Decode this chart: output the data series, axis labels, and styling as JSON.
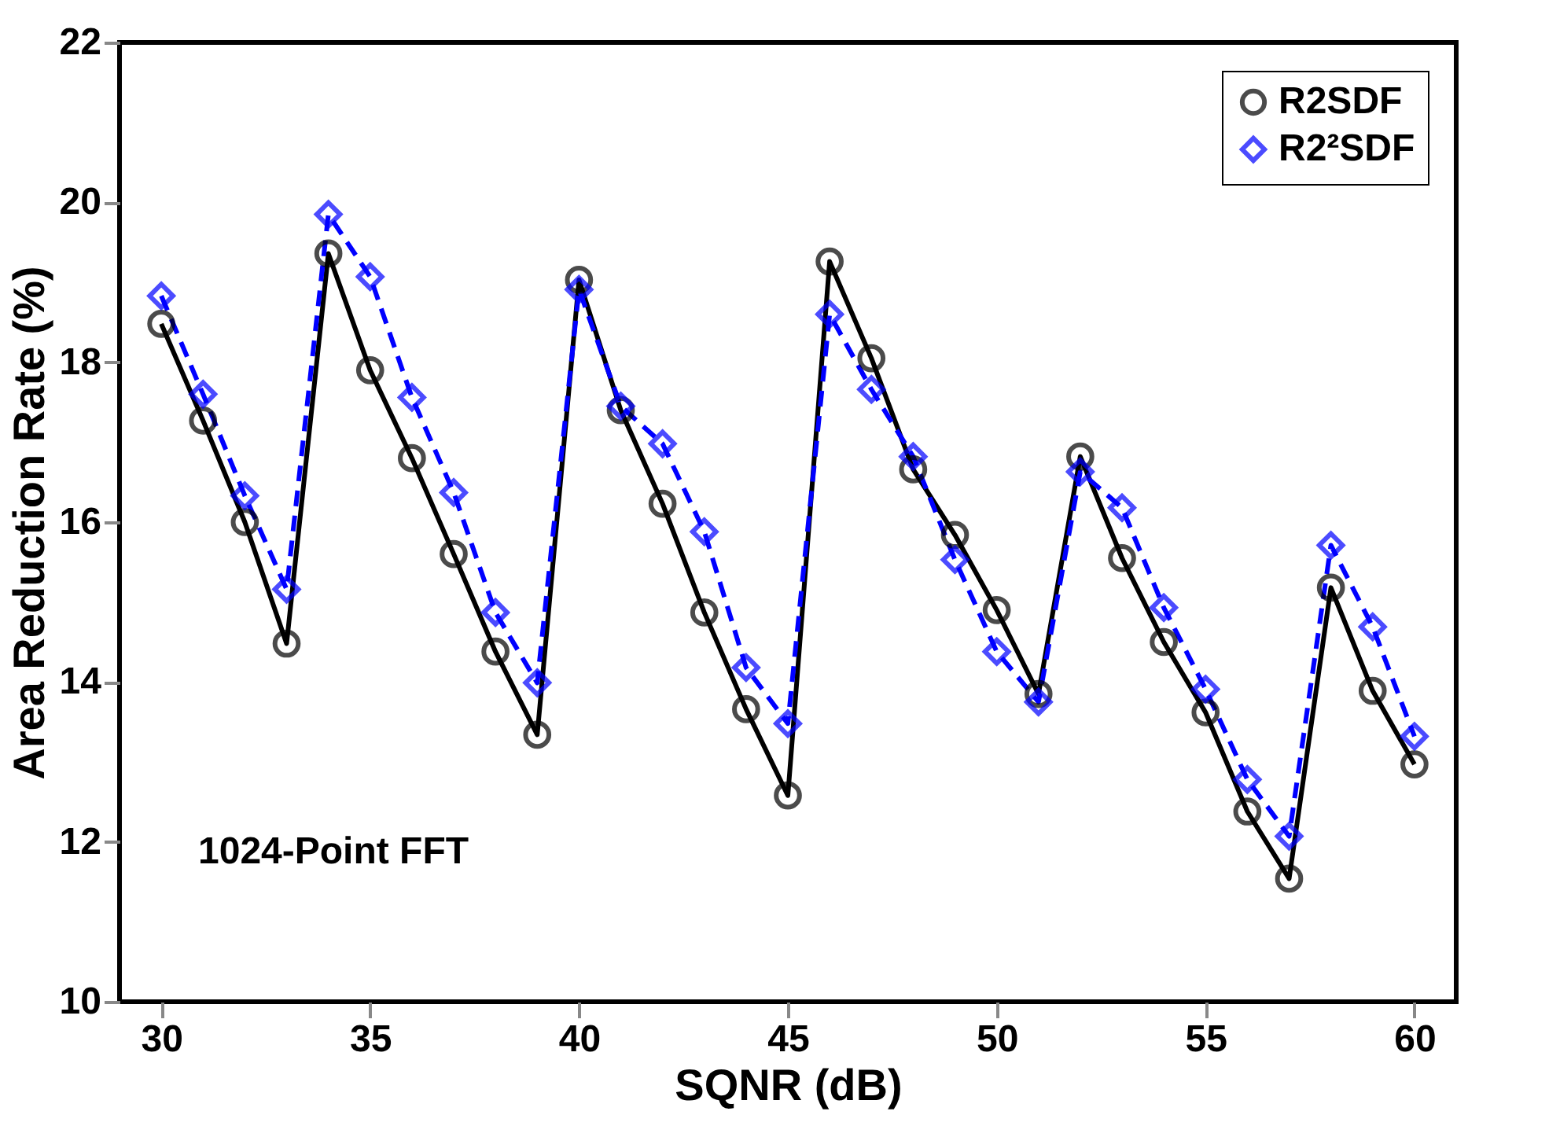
{
  "chart_data": {
    "type": "line",
    "xlabel": "SQNR (dB)",
    "ylabel": "Area Reduction Rate (%)",
    "annotations": [
      "1024-Point FFT"
    ],
    "x": [
      30,
      31,
      32,
      33,
      34,
      35,
      36,
      37,
      38,
      39,
      40,
      41,
      42,
      43,
      44,
      45,
      46,
      47,
      48,
      49,
      50,
      51,
      52,
      53,
      54,
      55,
      56,
      57,
      58,
      59,
      60
    ],
    "series": [
      {
        "name": "R2SDF",
        "color": "#000000",
        "marker": "circle",
        "line_style": "solid",
        "values": [
          18.48,
          17.27,
          16.0,
          14.48,
          19.36,
          17.9,
          16.8,
          15.6,
          14.38,
          13.34,
          19.03,
          17.4,
          16.23,
          14.87,
          13.66,
          12.58,
          19.26,
          18.05,
          16.66,
          15.84,
          14.9,
          13.85,
          16.82,
          15.55,
          14.5,
          13.62,
          12.38,
          11.54,
          15.18,
          13.89,
          12.97
        ]
      },
      {
        "name": "R2²SDF",
        "color": "#0000ff",
        "marker": "diamond",
        "line_style": "dashed",
        "values": [
          18.83,
          17.6,
          16.33,
          15.16,
          19.85,
          19.07,
          17.56,
          16.37,
          14.87,
          13.99,
          18.91,
          17.45,
          16.98,
          15.88,
          14.18,
          13.48,
          18.6,
          17.66,
          16.82,
          15.53,
          14.38,
          13.75,
          16.63,
          16.18,
          14.93,
          13.91,
          12.78,
          12.07,
          15.71,
          14.69,
          13.32
        ]
      }
    ],
    "xlim": [
      29,
      61
    ],
    "xticks": [
      30,
      35,
      40,
      45,
      50,
      55,
      60
    ],
    "ylim": [
      10,
      22
    ],
    "yticks": [
      10,
      12,
      14,
      16,
      18,
      20,
      22
    ],
    "grid": false,
    "legend": "top right"
  }
}
